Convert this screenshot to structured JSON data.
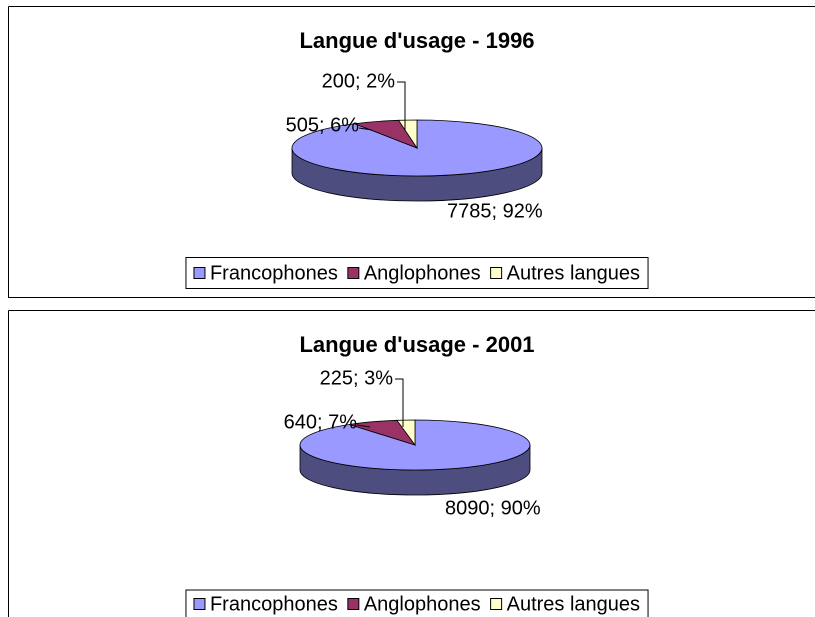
{
  "chart_data": [
    {
      "type": "pie",
      "title": "Langue d'usage - 1996",
      "categories": [
        "Francophones",
        "Anglophones",
        "Autres langues"
      ],
      "values": [
        7785,
        505,
        200
      ],
      "value_labels": [
        "7785; 92%",
        "505; 6%",
        "200; 2%"
      ],
      "colors": [
        "#9999ff",
        "#993366",
        "#ffffcc"
      ],
      "legend": "bottom"
    },
    {
      "type": "pie",
      "title": "Langue d'usage - 2001",
      "categories": [
        "Francophones",
        "Anglophones",
        "Autres langues"
      ],
      "values": [
        8090,
        640,
        225
      ],
      "value_labels": [
        "8090; 90%",
        "640; 7%",
        "225; 3%"
      ],
      "colors": [
        "#9999ff",
        "#993366",
        "#ffffcc"
      ],
      "legend": "bottom"
    }
  ]
}
